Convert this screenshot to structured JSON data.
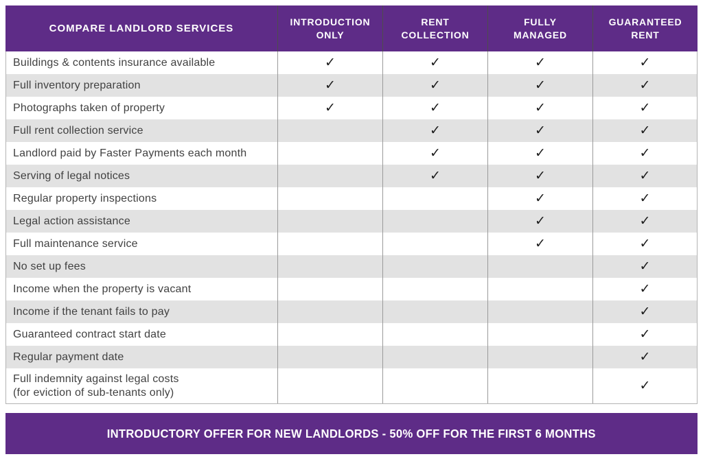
{
  "theme": {
    "purple": "#5e2c87",
    "stripe_gray": "#e2e2e2",
    "body_text": "#414141",
    "check_color": "#1c1c1c"
  },
  "table": {
    "title": "COMPARE LANDLORD SERVICES",
    "columns": [
      "INTRODUCTION\nONLY",
      "RENT\nCOLLECTION",
      "FULLY\nMANAGED",
      "GUARANTEED\nRENT"
    ],
    "check_symbol": "✓",
    "rows": [
      {
        "label": "Buildings & contents insurance available",
        "cells": [
          "✓",
          "✓",
          "✓",
          "✓"
        ]
      },
      {
        "label": "Full inventory preparation",
        "cells": [
          "✓",
          "✓",
          "✓",
          "✓"
        ]
      },
      {
        "label": "Photographs taken of property",
        "cells": [
          "✓",
          "✓",
          "✓",
          "✓"
        ]
      },
      {
        "label": "Full rent collection service",
        "cells": [
          "",
          "✓",
          "✓",
          "✓"
        ]
      },
      {
        "label": "Landlord paid by Faster Payments each month",
        "cells": [
          "",
          "✓",
          "✓",
          "✓"
        ]
      },
      {
        "label": "Serving of legal notices",
        "cells": [
          "",
          "✓",
          "✓",
          "✓"
        ]
      },
      {
        "label": "Regular property inspections",
        "cells": [
          "",
          "",
          "✓",
          "✓"
        ]
      },
      {
        "label": "Legal action assistance",
        "cells": [
          "",
          "",
          "✓",
          "✓"
        ]
      },
      {
        "label": "Full maintenance service",
        "cells": [
          "",
          "",
          "✓",
          "✓"
        ]
      },
      {
        "label": "No set up fees",
        "cells": [
          "",
          "",
          "",
          "✓"
        ]
      },
      {
        "label": "Income when the property is vacant",
        "cells": [
          "",
          "",
          "",
          "✓"
        ]
      },
      {
        "label": "Income if the tenant fails to pay",
        "cells": [
          "",
          "",
          "",
          "✓"
        ]
      },
      {
        "label": "Guaranteed contract start date",
        "cells": [
          "",
          "",
          "",
          "✓"
        ]
      },
      {
        "label": "Regular payment date",
        "cells": [
          "",
          "",
          "",
          "✓"
        ]
      },
      {
        "label": "Full indemnity against legal costs",
        "sublabel": "(for eviction of sub-tenants only)",
        "cells": [
          "",
          "",
          "",
          "✓"
        ]
      }
    ]
  },
  "footer": {
    "offer": "INTRODUCTORY OFFER FOR NEW LANDLORDS - 50% OFF FOR THE FIRST 6 MONTHS"
  }
}
